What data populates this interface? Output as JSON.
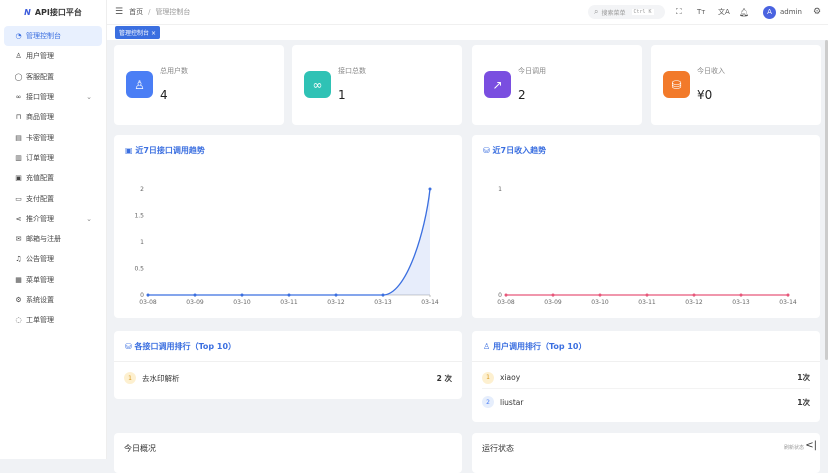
{
  "app": {
    "title": "API接口平台",
    "logo_letter": "N"
  },
  "sidebar": {
    "items": [
      {
        "label": "管理控制台",
        "icon": "dashboard-icon",
        "active": true
      },
      {
        "label": "用户管理",
        "icon": "user-icon"
      },
      {
        "label": "客服配置",
        "icon": "chat-icon"
      },
      {
        "label": "接口管理",
        "icon": "link-icon",
        "expandable": true
      },
      {
        "label": "商品管理",
        "icon": "bag-icon"
      },
      {
        "label": "卡密管理",
        "icon": "card-key-icon"
      },
      {
        "label": "订单管理",
        "icon": "order-icon"
      },
      {
        "label": "充值配置",
        "icon": "recharge-icon"
      },
      {
        "label": "支付配置",
        "icon": "payment-icon"
      },
      {
        "label": "推介管理",
        "icon": "share-icon",
        "expandable": true
      },
      {
        "label": "邮箱与注册",
        "icon": "mail-icon"
      },
      {
        "label": "公告管理",
        "icon": "bell-icon"
      },
      {
        "label": "菜单管理",
        "icon": "grid-icon"
      },
      {
        "label": "系统设置",
        "icon": "gear-icon"
      },
      {
        "label": "工单管理",
        "icon": "headset-icon"
      }
    ]
  },
  "header": {
    "breadcrumb": [
      "首页",
      "管理控制台"
    ],
    "search_placeholder": "搜索菜单",
    "search_shortcut": "Ctrl K",
    "user": "admin",
    "avatar_letter": "A"
  },
  "tabs": [
    {
      "label": "管理控制台"
    }
  ],
  "stats": [
    {
      "label": "总用户数",
      "value": "4",
      "color": "#4a7ef5",
      "icon": "user-icon"
    },
    {
      "label": "接口总数",
      "value": "1",
      "color": "#2fc2b5",
      "icon": "link-icon"
    },
    {
      "label": "今日调用",
      "value": "2",
      "color": "#7a4ee0",
      "icon": "chart-icon"
    },
    {
      "label": "今日收入",
      "value": "¥0",
      "color": "#f27a2a",
      "icon": "database-icon"
    }
  ],
  "charts": {
    "calls_title": "近7日接口调用趋势",
    "income_title": "近7日收入趋势"
  },
  "chart_data": [
    {
      "type": "area",
      "x": [
        "03-08",
        "03-09",
        "03-10",
        "03-11",
        "03-12",
        "03-13",
        "03-14"
      ],
      "values": [
        0,
        0,
        0,
        0,
        0,
        0,
        2
      ],
      "ylim": [
        0,
        2
      ],
      "yticks": [
        "0",
        "0.5",
        "1",
        "1.5",
        "2"
      ],
      "color": "#3b6fe0"
    },
    {
      "type": "line",
      "x": [
        "03-08",
        "03-09",
        "03-10",
        "03-11",
        "03-12",
        "03-13",
        "03-14"
      ],
      "values": [
        0,
        0,
        0,
        0,
        0,
        0,
        0
      ],
      "ylim": [
        0,
        1
      ],
      "yticks": [
        "0",
        "1"
      ],
      "color": "#e8577a"
    }
  ],
  "rank_api": {
    "title": "各接口调用排行（Top 10）",
    "items": [
      {
        "rank": "1",
        "name": "去水印解析",
        "count": "2 次"
      }
    ]
  },
  "rank_user": {
    "title": "用户调用排行（Top 10）",
    "items": [
      {
        "rank": "1",
        "name": "xiaoy",
        "count": "1次"
      },
      {
        "rank": "2",
        "name": "liustar",
        "count": "1次"
      }
    ]
  },
  "bottom": {
    "today": "今日概况",
    "status": "运行状态",
    "refresh": "刷新状态"
  }
}
